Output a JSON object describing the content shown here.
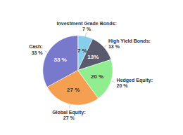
{
  "chart_data": {
    "type": "pie",
    "categories": [
      "Investment Grade Bonds:",
      "High Yield Bonds:",
      "Hedged Equity:",
      "Global Equity:",
      "Cash:"
    ],
    "values": [
      7,
      13,
      20,
      27,
      33
    ],
    "colors": [
      "#87CEEB",
      "#5a5a6e",
      "#90EE90",
      "#F4A050",
      "#7878CC"
    ],
    "data_labels": true,
    "value_labels": [
      "7 %",
      "13%",
      "20 %",
      "27 %",
      "33 %"
    ],
    "annotations": [
      "7 %",
      "13 %",
      "20 %",
      "27 %",
      "33 %"
    ]
  }
}
